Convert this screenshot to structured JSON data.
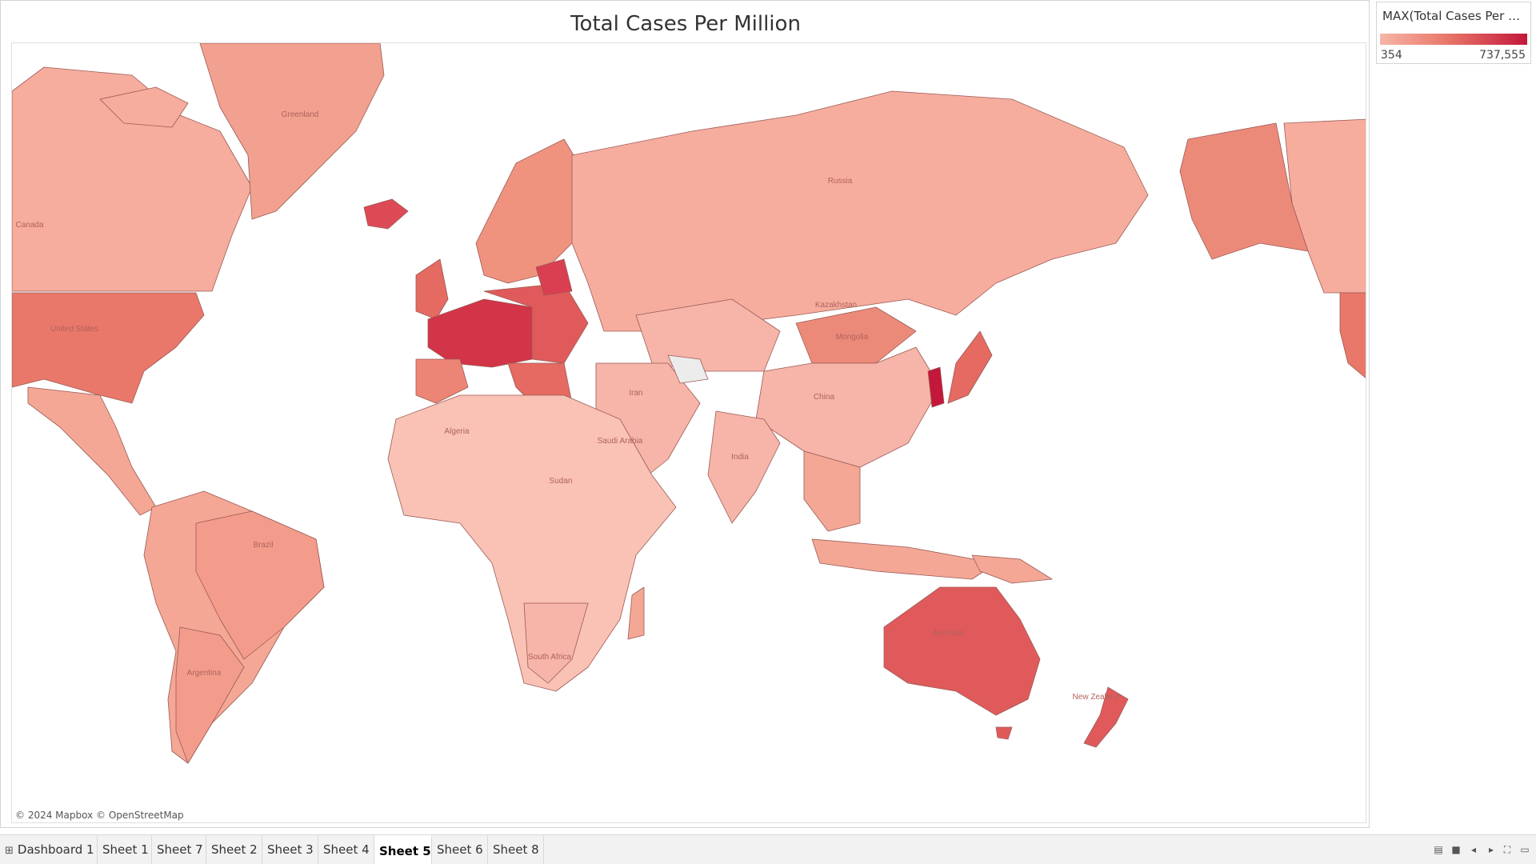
{
  "sheet": {
    "title": "Total Cases Per Million",
    "attribution": "© 2024 Mapbox © OpenStreetMap"
  },
  "legend": {
    "title": "MAX(Total Cases Per M...",
    "min_label": "354",
    "max_label": "737,555",
    "colors": {
      "low": "#f6b5a8",
      "mid": "#e9786a",
      "high": "#c3183b"
    }
  },
  "map_labels": {
    "greenland": "Greenland",
    "canada": "Canada",
    "united_states": "United States",
    "russia": "Russia",
    "mongolia": "Mongolia",
    "china": "China",
    "brazil": "Brazil",
    "argentina": "Argentina",
    "australia": "Australia",
    "algeria": "Algeria",
    "sudan": "Sudan",
    "south_africa": "South Africa",
    "india": "India",
    "iran": "Iran",
    "saudi_arabia": "Saudi Arabia",
    "kazakhstan": "Kazakhstan",
    "new_zealand": "New Zealand"
  },
  "tabs": [
    {
      "label": "Dashboard 1",
      "icon": "dashboard-grid-icon",
      "active": false
    },
    {
      "label": "Sheet 1",
      "active": false
    },
    {
      "label": "Sheet 7",
      "active": false
    },
    {
      "label": "Sheet 2",
      "active": false
    },
    {
      "label": "Sheet 3",
      "active": false
    },
    {
      "label": "Sheet 4",
      "active": false
    },
    {
      "label": "Sheet 5",
      "active": true
    },
    {
      "label": "Sheet 6",
      "active": false
    },
    {
      "label": "Sheet 8",
      "active": false
    }
  ],
  "nav_icons": [
    "show-sheet-sorter-icon",
    "show-filmstrip-icon",
    "previous-sheet-icon",
    "next-sheet-icon",
    "fit-width-icon",
    "presentation-mode-icon"
  ]
}
